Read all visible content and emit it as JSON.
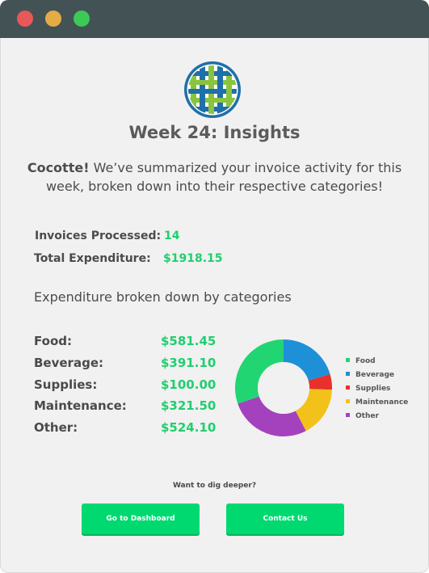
{
  "colors": {
    "titlebar": "#435255",
    "accent_green": "#1fcf6e",
    "button_green": "#00d970",
    "close": "#e85858",
    "minimize": "#e5ac45",
    "maximize": "#3cc956"
  },
  "header": {
    "logo_icon": "woven-basket-logo",
    "title": "Week 24: Insights"
  },
  "intro": {
    "name": "Cocotte!",
    "message": " We’ve summarized your invoice activity for this week, broken down into their respective categories!"
  },
  "stats": {
    "invoices_label": "Invoices Processed:",
    "invoices_value": "14",
    "total_label": "Total Expenditure:",
    "total_value": "$1918.15"
  },
  "breakdown": {
    "heading": "Expenditure broken down by categories",
    "categories": [
      {
        "label": "Food:",
        "value": "$581.45"
      },
      {
        "label": "Beverage:",
        "value": "$391.10"
      },
      {
        "label": "Supplies:",
        "value": "$100.00"
      },
      {
        "label": "Maintenance:",
        "value": "$321.50"
      },
      {
        "label": "Other:",
        "value": "$524.10"
      }
    ]
  },
  "chart_data": {
    "type": "pie",
    "categories": [
      "Food",
      "Beverage",
      "Supplies",
      "Maintenance",
      "Other"
    ],
    "values": [
      581.45,
      391.1,
      100.0,
      321.5,
      524.1
    ],
    "colors": [
      "#21d573",
      "#1e90d8",
      "#e8312b",
      "#f2c21b",
      "#a441bd"
    ],
    "donut": true,
    "legend": "right"
  },
  "footer": {
    "prompt": "Want to dig deeper?",
    "dashboard_button": "Go to Dashboard",
    "contact_button": "Contact Us"
  }
}
